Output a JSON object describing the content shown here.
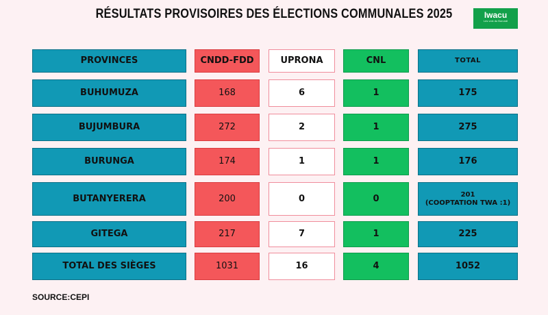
{
  "title": "RÉSULTATS PROVISOIRES DES ÉLECTIONS COMMUNALES 2025",
  "logo": {
    "word": "Iwacu",
    "tagline": "Les voix du Burundi"
  },
  "table": {
    "headers": [
      "PROVINCES",
      "CNDD-FDD",
      "UPRONA",
      "CNL",
      "TOTAL"
    ],
    "rows": [
      {
        "province": "BUHUMUZA",
        "cndd_fdd": "168",
        "uprona": "6",
        "cnl": "1",
        "total": "175"
      },
      {
        "province": "BUJUMBURA",
        "cndd_fdd": "272",
        "uprona": "2",
        "cnl": "1",
        "total": "275"
      },
      {
        "province": "BURUNGA",
        "cndd_fdd": "174",
        "uprona": "1",
        "cnl": "1",
        "total": "176"
      },
      {
        "province": "BUTANYERERA",
        "cndd_fdd": "200",
        "uprona": "0",
        "cnl": "0",
        "total": "201",
        "total_note": "(COOPTATION TWA :1)"
      },
      {
        "province": "GITEGA",
        "cndd_fdd": "217",
        "uprona": "7",
        "cnl": "1",
        "total": "225"
      },
      {
        "province": "TOTAL DES SIÈGES",
        "cndd_fdd": "1031",
        "uprona": "16",
        "cnl": "4",
        "total": "1052"
      }
    ]
  },
  "source": "SOURCE:CEPI",
  "colors": {
    "provinces": "#1199b5",
    "cndd_fdd": "#f4575a",
    "uprona": "#ffffff",
    "cnl": "#13bf5f",
    "background": "#fdf1f3"
  }
}
